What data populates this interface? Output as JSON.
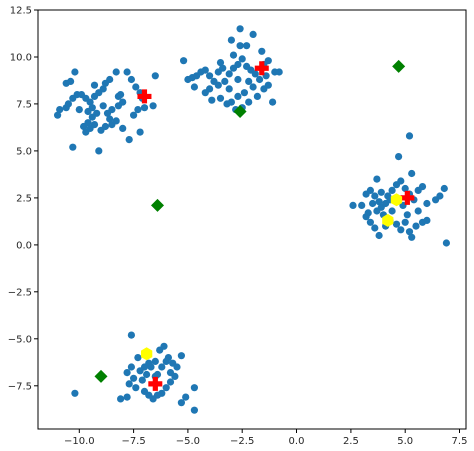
{
  "chart_data": {
    "type": "scatter",
    "title": "",
    "xlabel": "",
    "ylabel": "",
    "xlim": [
      -11.9,
      7.8
    ],
    "ylim": [
      -9.8,
      12.5
    ],
    "grid": false,
    "x_ticks": [
      -10.0,
      -7.5,
      -5.0,
      -2.5,
      0.0,
      2.5,
      5.0,
      7.5
    ],
    "x_tick_labels": [
      "−10.0",
      "−7.5",
      "−5.0",
      "−2.5",
      "0.0",
      "2.5",
      "5.0",
      "7.5"
    ],
    "y_ticks": [
      -7.5,
      -5.0,
      -2.5,
      0.0,
      2.5,
      5.0,
      7.5,
      10.0,
      12.5
    ],
    "y_tick_labels": [
      "−7.5",
      "−5.0",
      "−2.5",
      "0.0",
      "2.5",
      "5.0",
      "7.5",
      "10.0",
      "12.5"
    ],
    "colors": {
      "points": "#1f77b4",
      "plus_markers": "#ff0000",
      "diamond_markers": "#008000",
      "hexagon_markers": "#ffff00"
    },
    "series": [
      {
        "marker": "circle",
        "color": "#1f77b4",
        "points": [
          [
            -11.0,
            6.9
          ],
          [
            -10.9,
            7.2
          ],
          [
            -10.6,
            7.3
          ],
          [
            -10.6,
            8.6
          ],
          [
            -10.4,
            8.7
          ],
          [
            -10.2,
            9.2
          ],
          [
            -10.5,
            7.5
          ],
          [
            -10.3,
            7.8
          ],
          [
            -10.1,
            8.0
          ],
          [
            -9.9,
            8.0
          ],
          [
            -9.7,
            7.8
          ],
          [
            -9.5,
            7.6
          ],
          [
            -9.3,
            7.9
          ],
          [
            -9.1,
            8.1
          ],
          [
            -8.9,
            8.3
          ],
          [
            -8.8,
            8.6
          ],
          [
            -8.6,
            8.8
          ],
          [
            -8.3,
            9.2
          ],
          [
            -7.8,
            9.2
          ],
          [
            -7.6,
            8.8
          ],
          [
            -7.4,
            8.4
          ],
          [
            -7.2,
            8.1
          ],
          [
            -7.1,
            7.8
          ],
          [
            -8.2,
            7.9
          ],
          [
            -8.0,
            7.6
          ],
          [
            -8.2,
            7.4
          ],
          [
            -8.5,
            7.2
          ],
          [
            -8.9,
            7.4
          ],
          [
            -9.2,
            7.0
          ],
          [
            -9.4,
            6.8
          ],
          [
            -9.6,
            6.5
          ],
          [
            -9.8,
            6.3
          ],
          [
            -9.7,
            6.0
          ],
          [
            -9.5,
            6.2
          ],
          [
            -9.3,
            6.4
          ],
          [
            -9.0,
            6.1
          ],
          [
            -8.8,
            6.3
          ],
          [
            -8.5,
            6.4
          ],
          [
            -8.3,
            6.6
          ],
          [
            -8.0,
            6.2
          ],
          [
            -7.7,
            5.6
          ],
          [
            -7.2,
            6.0
          ],
          [
            -7.5,
            6.9
          ],
          [
            -7.3,
            7.2
          ],
          [
            -7.0,
            7.3
          ],
          [
            -6.6,
            7.4
          ],
          [
            -6.5,
            9.0
          ],
          [
            -10.3,
            5.2
          ],
          [
            -9.1,
            5.0
          ],
          [
            -10.0,
            7.2
          ],
          [
            -9.4,
            7.3
          ],
          [
            -9.6,
            7.1
          ],
          [
            -8.7,
            7.0
          ],
          [
            -8.6,
            6.7
          ],
          [
            -9.3,
            8.5
          ],
          [
            -8.1,
            8.0
          ],
          [
            -5.2,
            9.8
          ],
          [
            -4.8,
            8.9
          ],
          [
            -4.6,
            9.0
          ],
          [
            -4.4,
            9.2
          ],
          [
            -4.2,
            9.3
          ],
          [
            -4.0,
            9.0
          ],
          [
            -3.8,
            8.7
          ],
          [
            -3.6,
            8.5
          ],
          [
            -3.3,
            8.7
          ],
          [
            -3.1,
            9.1
          ],
          [
            -2.9,
            9.4
          ],
          [
            -2.7,
            9.6
          ],
          [
            -2.5,
            9.9
          ],
          [
            -2.3,
            9.5
          ],
          [
            -2.1,
            9.3
          ],
          [
            -1.9,
            9.1
          ],
          [
            -1.7,
            8.8
          ],
          [
            -1.5,
            9.6
          ],
          [
            -1.3,
            9.8
          ],
          [
            -1.0,
            9.2
          ],
          [
            -0.8,
            9.2
          ],
          [
            -1.6,
            10.3
          ],
          [
            -2.0,
            11.2
          ],
          [
            -2.3,
            10.6
          ],
          [
            -2.6,
            10.6
          ],
          [
            -2.6,
            11.5
          ],
          [
            -2.9,
            10.1
          ],
          [
            -3.0,
            10.9
          ],
          [
            -3.4,
            9.4
          ],
          [
            -3.6,
            9.2
          ],
          [
            -4.0,
            8.3
          ],
          [
            -4.2,
            8.1
          ],
          [
            -3.9,
            7.7
          ],
          [
            -3.5,
            7.8
          ],
          [
            -3.2,
            7.5
          ],
          [
            -3.0,
            7.6
          ],
          [
            -2.7,
            7.9
          ],
          [
            -2.4,
            8.1
          ],
          [
            -2.2,
            7.6
          ],
          [
            -2.5,
            7.3
          ],
          [
            -2.8,
            7.2
          ],
          [
            -1.8,
            7.9
          ],
          [
            -1.5,
            8.3
          ],
          [
            -1.3,
            8.5
          ],
          [
            -1.1,
            7.6
          ],
          [
            -2.2,
            8.7
          ],
          [
            -3.5,
            9.7
          ],
          [
            -5.0,
            8.8
          ],
          [
            -4.7,
            8.4
          ],
          [
            -3.1,
            8.3
          ],
          [
            -2.0,
            8.4
          ],
          [
            -1.4,
            9.0
          ],
          [
            -2.7,
            8.8
          ],
          [
            2.6,
            2.1
          ],
          [
            3.0,
            2.1
          ],
          [
            3.2,
            2.7
          ],
          [
            3.4,
            2.9
          ],
          [
            3.6,
            2.6
          ],
          [
            3.8,
            2.3
          ],
          [
            3.9,
            2.0
          ],
          [
            4.1,
            2.2
          ],
          [
            4.2,
            2.6
          ],
          [
            4.4,
            2.9
          ],
          [
            4.6,
            3.2
          ],
          [
            4.8,
            3.4
          ],
          [
            5.0,
            3.0
          ],
          [
            5.2,
            2.7
          ],
          [
            5.4,
            2.4
          ],
          [
            5.6,
            2.9
          ],
          [
            5.8,
            3.1
          ],
          [
            6.0,
            2.2
          ],
          [
            6.4,
            2.4
          ],
          [
            6.6,
            2.6
          ],
          [
            6.8,
            3.0
          ],
          [
            6.9,
            0.1
          ],
          [
            5.3,
            3.8
          ],
          [
            4.7,
            4.7
          ],
          [
            5.2,
            5.8
          ],
          [
            3.7,
            3.5
          ],
          [
            3.2,
            1.5
          ],
          [
            3.4,
            1.2
          ],
          [
            3.6,
            0.9
          ],
          [
            3.8,
            0.5
          ],
          [
            4.1,
            1.0
          ],
          [
            4.3,
            1.3
          ],
          [
            4.6,
            1.1
          ],
          [
            4.8,
            0.8
          ],
          [
            5.0,
            1.2
          ],
          [
            5.2,
            0.7
          ],
          [
            5.3,
            0.4
          ],
          [
            5.5,
            1.0
          ],
          [
            5.8,
            1.2
          ],
          [
            6.0,
            1.3
          ],
          [
            5.6,
            1.8
          ],
          [
            4.9,
            2.1
          ],
          [
            4.4,
            1.8
          ],
          [
            4.0,
            1.6
          ],
          [
            3.5,
            2.2
          ],
          [
            3.3,
            1.7
          ],
          [
            4.6,
            2.4
          ],
          [
            5.1,
            1.6
          ],
          [
            3.9,
            2.8
          ],
          [
            4.3,
            2.4
          ],
          [
            3.7,
            1.8
          ],
          [
            -7.6,
            -4.8
          ],
          [
            -7.3,
            -6.0
          ],
          [
            -7.6,
            -6.5
          ],
          [
            -7.8,
            -6.8
          ],
          [
            -7.5,
            -7.1
          ],
          [
            -7.7,
            -7.4
          ],
          [
            -7.4,
            -7.6
          ],
          [
            -7.1,
            -7.2
          ],
          [
            -6.9,
            -6.9
          ],
          [
            -6.7,
            -6.5
          ],
          [
            -6.5,
            -6.2
          ],
          [
            -6.3,
            -5.6
          ],
          [
            -6.1,
            -5.4
          ],
          [
            -5.9,
            -6.0
          ],
          [
            -5.7,
            -6.3
          ],
          [
            -5.5,
            -6.5
          ],
          [
            -5.3,
            -5.9
          ],
          [
            -5.6,
            -7.0
          ],
          [
            -5.8,
            -7.3
          ],
          [
            -6.0,
            -7.6
          ],
          [
            -6.2,
            -7.9
          ],
          [
            -6.4,
            -8.0
          ],
          [
            -6.6,
            -8.2
          ],
          [
            -6.8,
            -8.0
          ],
          [
            -7.0,
            -7.8
          ],
          [
            -7.8,
            -8.1
          ],
          [
            -8.1,
            -8.2
          ],
          [
            -5.3,
            -8.4
          ],
          [
            -5.1,
            -8.1
          ],
          [
            -4.7,
            -7.6
          ],
          [
            -4.7,
            -8.8
          ],
          [
            -10.2,
            -7.9
          ],
          [
            -6.2,
            -6.5
          ],
          [
            -6.5,
            -7.0
          ],
          [
            -6.8,
            -6.3
          ],
          [
            -7.2,
            -6.7
          ],
          [
            -5.8,
            -6.8
          ],
          [
            -6.0,
            -6.2
          ],
          [
            -6.4,
            -6.9
          ],
          [
            -7.0,
            -6.5
          ]
        ]
      },
      {
        "marker": "plus",
        "color": "#ff0000",
        "points": [
          [
            -7.0,
            7.9
          ],
          [
            -1.6,
            9.4
          ],
          [
            5.1,
            2.5
          ],
          [
            -6.5,
            -7.4
          ]
        ]
      },
      {
        "marker": "diamond",
        "color": "#008000",
        "points": [
          [
            4.7,
            9.5
          ],
          [
            -2.6,
            7.1
          ],
          [
            -6.4,
            2.1
          ],
          [
            -9.0,
            -7.0
          ]
        ]
      },
      {
        "marker": "hexagon",
        "color": "#ffff00",
        "points": [
          [
            4.6,
            2.4
          ],
          [
            4.2,
            1.3
          ],
          [
            -6.9,
            -5.8
          ]
        ]
      }
    ]
  }
}
